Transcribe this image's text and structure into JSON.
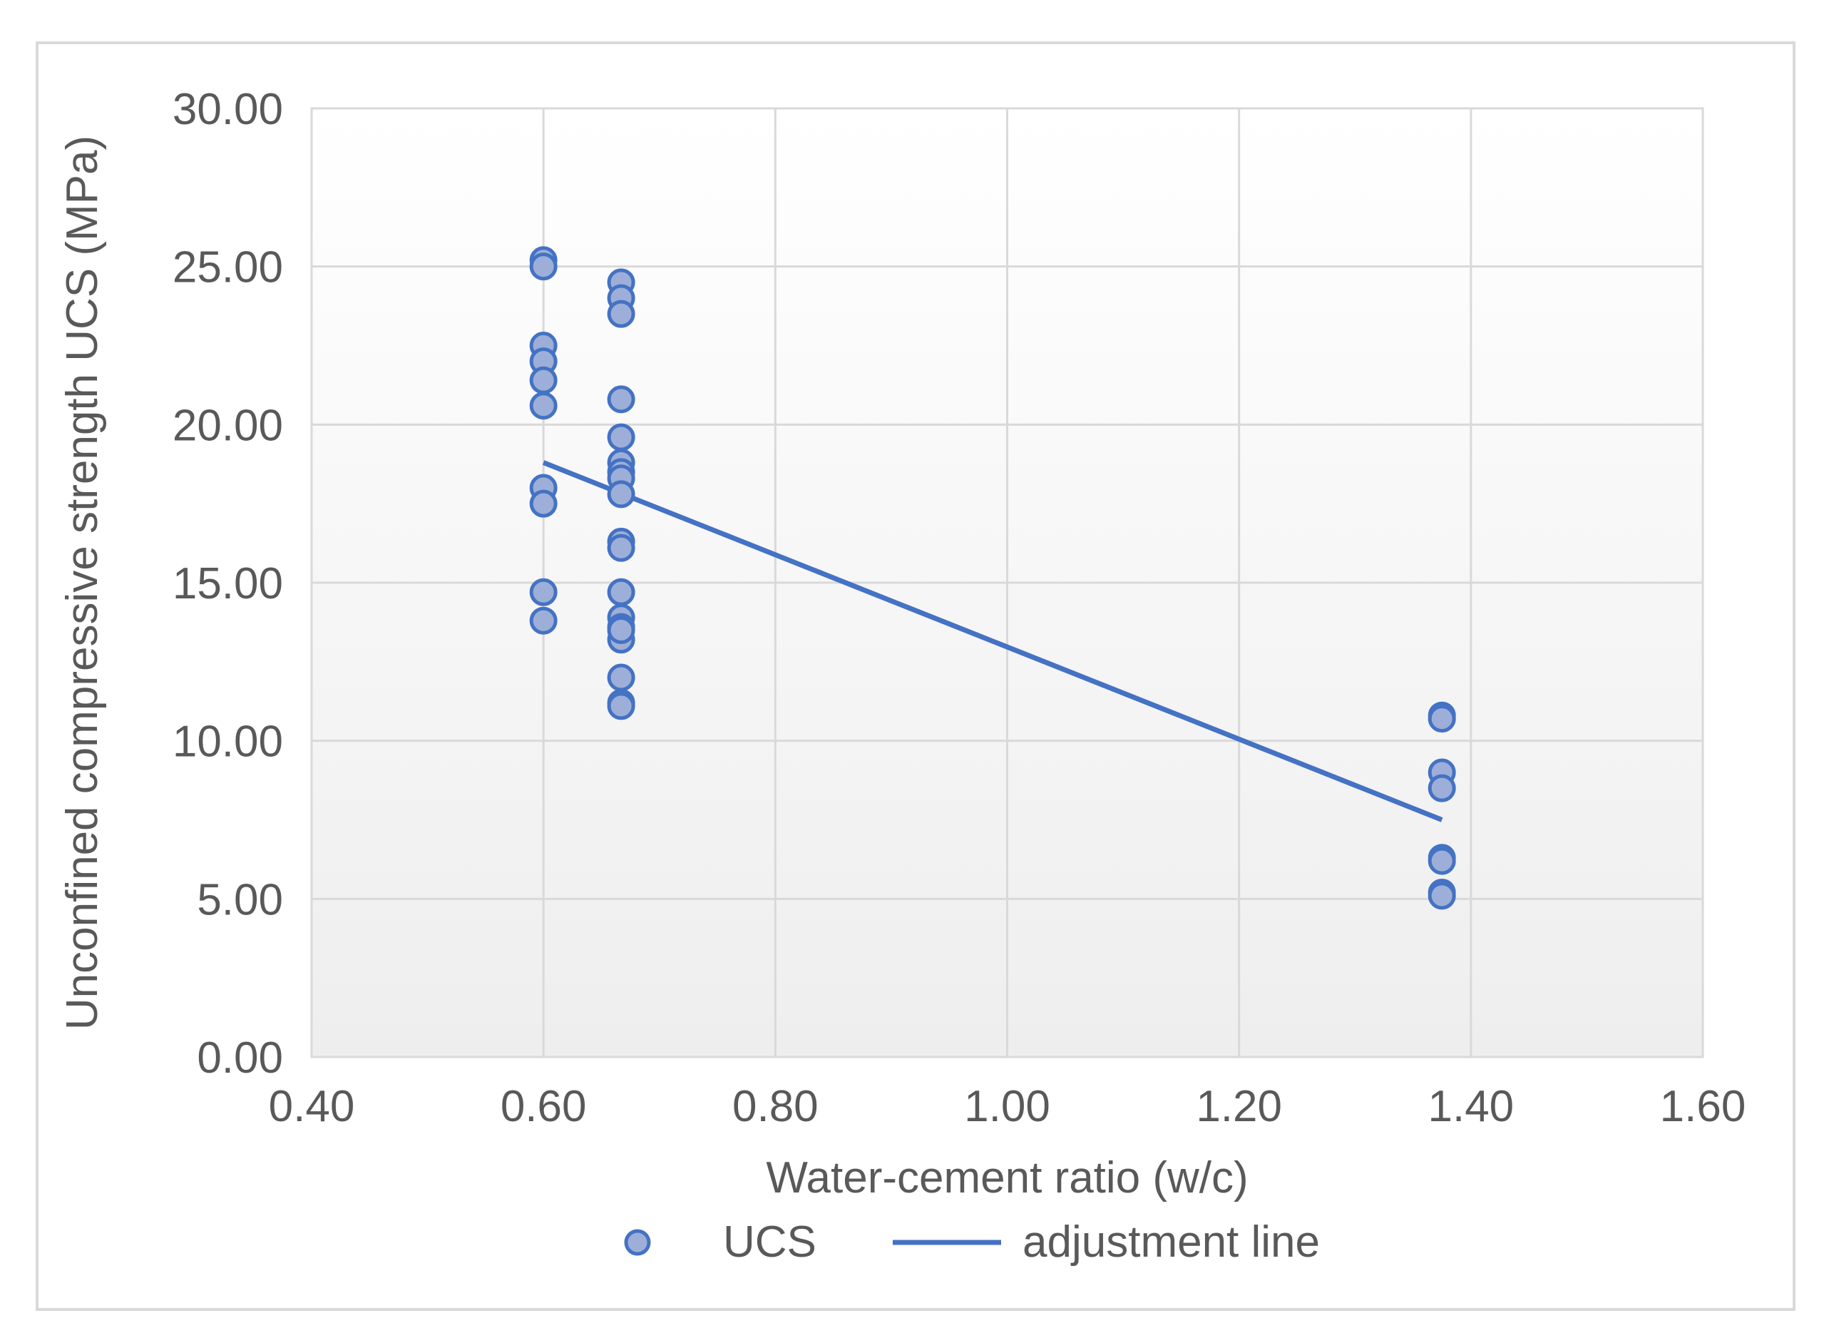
{
  "chart_data": {
    "type": "scatter",
    "title": "",
    "xlabel": "Water-cement ratio (w/c)",
    "ylabel": "Unconfined compressive strength UCS (MPa)",
    "xlim": [
      0.4,
      1.6
    ],
    "ylim": [
      0,
      30
    ],
    "x_ticks": [
      "0.40",
      "0.60",
      "0.80",
      "1.00",
      "1.20",
      "1.40",
      "1.60"
    ],
    "y_ticks": [
      "0.00",
      "5.00",
      "10.00",
      "15.00",
      "20.00",
      "25.00",
      "30.00"
    ],
    "x_tick_values": [
      0.4,
      0.6,
      0.8,
      1.0,
      1.2,
      1.4,
      1.6
    ],
    "y_tick_values": [
      0,
      5,
      10,
      15,
      20,
      25,
      30
    ],
    "grid": true,
    "series": [
      {
        "name": "UCS",
        "kind": "scatter",
        "color": "#4472c4",
        "fill": "#9dafd8",
        "points": [
          [
            0.6,
            25.2
          ],
          [
            0.6,
            25.0
          ],
          [
            0.6,
            22.5
          ],
          [
            0.6,
            22.0
          ],
          [
            0.6,
            21.4
          ],
          [
            0.6,
            20.6
          ],
          [
            0.6,
            18.0
          ],
          [
            0.6,
            17.5
          ],
          [
            0.6,
            14.7
          ],
          [
            0.6,
            13.8
          ],
          [
            0.667,
            24.5
          ],
          [
            0.667,
            24.0
          ],
          [
            0.667,
            23.5
          ],
          [
            0.667,
            20.8
          ],
          [
            0.667,
            19.6
          ],
          [
            0.667,
            18.8
          ],
          [
            0.667,
            18.5
          ],
          [
            0.667,
            18.3
          ],
          [
            0.667,
            17.8
          ],
          [
            0.667,
            16.3
          ],
          [
            0.667,
            16.1
          ],
          [
            0.667,
            14.7
          ],
          [
            0.667,
            13.9
          ],
          [
            0.667,
            13.6
          ],
          [
            0.667,
            13.2
          ],
          [
            0.667,
            13.5
          ],
          [
            0.667,
            12.0
          ],
          [
            0.667,
            11.2
          ],
          [
            0.667,
            11.1
          ],
          [
            1.375,
            10.8
          ],
          [
            1.375,
            10.7
          ],
          [
            1.375,
            9.0
          ],
          [
            1.375,
            8.5
          ],
          [
            1.375,
            6.3
          ],
          [
            1.375,
            6.2
          ],
          [
            1.375,
            5.2
          ],
          [
            1.375,
            5.1
          ]
        ]
      },
      {
        "name": "adjustment line",
        "kind": "line",
        "color": "#4472c4",
        "points": [
          [
            0.6,
            18.8
          ],
          [
            1.375,
            7.5
          ]
        ]
      }
    ],
    "legend": {
      "position": "bottom",
      "items": [
        "UCS",
        "adjustment line"
      ]
    }
  }
}
